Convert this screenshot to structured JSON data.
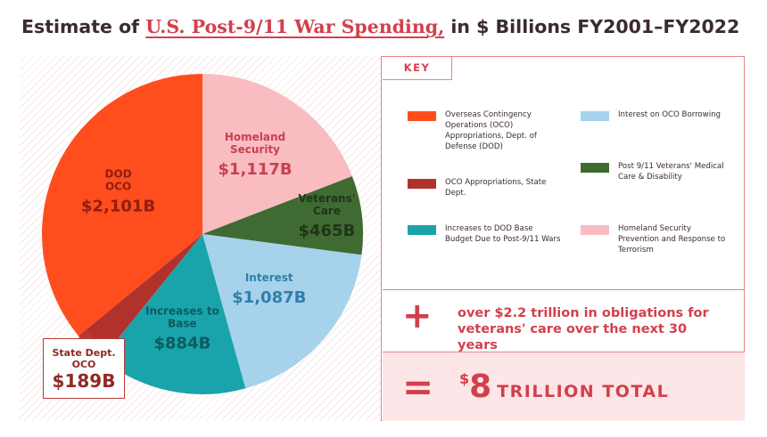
{
  "title": {
    "prefix": "Estimate of ",
    "highlight": "U.S. Post-9/11 War Spending,",
    "suffix": " in $ Billions FY2001–FY2022"
  },
  "chart_data": {
    "type": "pie",
    "unit": "$B",
    "slices": [
      {
        "name": "Homeland Security",
        "value": 1117,
        "label": "Homeland Security",
        "value_label": "$1,117B",
        "color": "#f9bcc0",
        "text_color": "#c7414e"
      },
      {
        "name": "Veterans' Care",
        "value": 465,
        "label": "Veterans' Care",
        "value_label": "$465B",
        "color": "#3f6b32",
        "text_color": "#1f3518"
      },
      {
        "name": "Interest",
        "value": 1087,
        "label": "Interest",
        "value_label": "$1,087B",
        "color": "#a6d2ec",
        "text_color": "#2f7fa9"
      },
      {
        "name": "Increases to Base",
        "value": 884,
        "label": "Increases to Base",
        "value_label": "$884B",
        "color": "#18a4aa",
        "text_color": "#0d5a5f"
      },
      {
        "name": "State Dept. OCO",
        "value": 189,
        "label": "State Dept. OCO",
        "value_label": "$189B",
        "color": "#b1322b",
        "text_color": "#8e2a24"
      },
      {
        "name": "DOD OCO",
        "value": 2101,
        "label": "DOD OCO",
        "value_label": "$2,101B",
        "color": "#ff4d1e",
        "text_color": "#8e1f0f"
      }
    ]
  },
  "key": {
    "title": "KEY",
    "items": [
      {
        "label": "Overseas Contingency Operations (OCO) Appropriations, Dept. of Defense (DOD)",
        "color": "#ff4d1e"
      },
      {
        "label": "OCO Appropriations, State Dept.",
        "color": "#b1322b"
      },
      {
        "label": "Increases to DOD Base Budget Due to Post-9/11 Wars",
        "color": "#18a4aa"
      },
      {
        "label": "Interest on OCO Borrowing",
        "color": "#a6d2ec"
      },
      {
        "label": "Post 9/11 Veterans' Medical Care & Disability",
        "color": "#3f6b32"
      },
      {
        "label": "Homeland Security Prevention and Response to Terrorism",
        "color": "#f9bcc0"
      }
    ]
  },
  "obligations": {
    "sign": "+",
    "text": "over $2.2 trillion in obligations for veterans' care over the next 30 years"
  },
  "total": {
    "sign": "=",
    "currency": "$",
    "amount": "8",
    "label": "TRILLION TOTAL"
  },
  "colors": {
    "accent": "#d2404c",
    "border": "#e8828a",
    "total_bg": "#fde6e7"
  }
}
